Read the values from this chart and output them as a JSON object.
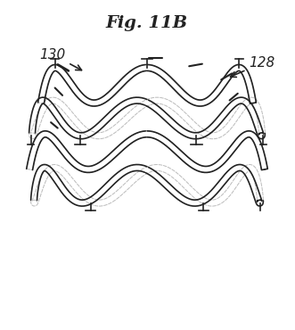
{
  "title": "Fig. 11B",
  "title_style": "italic",
  "title_fontsize": 14,
  "title_fontweight": "bold",
  "label_130": "130",
  "label_128": "128",
  "bg_color": "#ffffff",
  "line_color": "#222222",
  "line_width": 1.2,
  "fig_width": 3.31,
  "fig_height": 3.7
}
